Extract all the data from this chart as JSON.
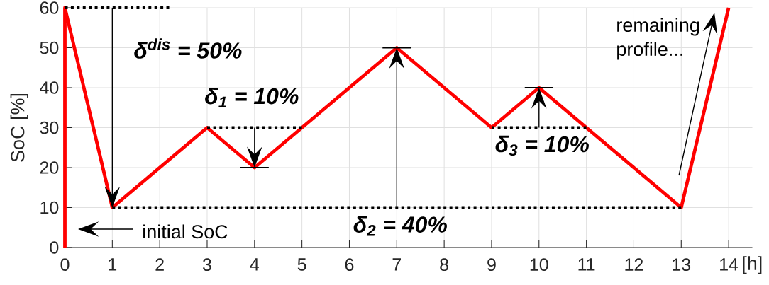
{
  "chart_data": {
    "type": "line",
    "xlabel": "[h]",
    "ylabel": "SoC [%]",
    "x": [
      0,
      0,
      1,
      3,
      4,
      7,
      9,
      10,
      13,
      14
    ],
    "series": [
      {
        "color": "#ff0000",
        "values": [
          0,
          60,
          10,
          30,
          20,
          50,
          30,
          40,
          10,
          60
        ]
      },
      {
        "type": "line",
        "x": [
          0,
          2.2
        ],
        "values": [
          60,
          60
        ],
        "color": "#000000",
        "line_style": "dotted"
      },
      {
        "type": "line",
        "x": [
          3,
          5
        ],
        "values": [
          30,
          30
        ],
        "color": "#000000",
        "line_style": "dotted"
      },
      {
        "type": "line",
        "x": [
          1,
          13
        ],
        "values": [
          10,
          10
        ],
        "color": "#000000",
        "line_style": "dotted"
      },
      {
        "type": "line",
        "x": [
          9,
          11
        ],
        "values": [
          30,
          30
        ],
        "color": "#000000",
        "line_style": "dotted"
      },
      {
        "type": "line",
        "x": [
          3.7,
          4.3
        ],
        "values": [
          20,
          20
        ],
        "color": "#000000",
        "line_style": "solid"
      },
      {
        "type": "line",
        "x": [
          6.7,
          7.3
        ],
        "values": [
          50,
          50
        ],
        "color": "#000000",
        "line_style": "solid"
      },
      {
        "type": "line",
        "x": [
          9.7,
          10.3
        ],
        "values": [
          40,
          40
        ],
        "color": "#000000",
        "line_style": "solid"
      }
    ],
    "xlim": [
      0,
      14.5
    ],
    "ylim": [
      0,
      60
    ],
    "xticks": [
      0,
      1,
      2,
      3,
      4,
      5,
      6,
      7,
      8,
      9,
      10,
      11,
      12,
      13,
      14
    ],
    "yticks": [
      0,
      10,
      20,
      30,
      40,
      50,
      60
    ],
    "grid": true,
    "line_style": "solid",
    "annotations": [
      "δ$^{dis}$ = 50%",
      "δ$_{1}$ = 10%",
      "δ$_{2}$ = 40%",
      "δ$_{3}$ = 10%",
      "initial SoC",
      "remaining profile..."
    ]
  }
}
